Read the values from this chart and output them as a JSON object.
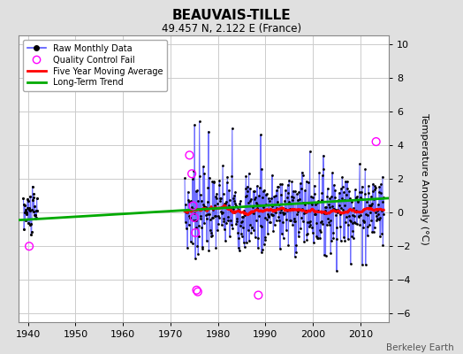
{
  "title": "BEAUVAIS-TILLE",
  "subtitle": "49.457 N, 2.122 E (France)",
  "ylabel": "Temperature Anomaly (°C)",
  "credit": "Berkeley Earth",
  "xlim": [
    1938,
    2016
  ],
  "ylim": [
    -6.5,
    10.5
  ],
  "yticks": [
    -6,
    -4,
    -2,
    0,
    2,
    4,
    6,
    8,
    10
  ],
  "xticks": [
    1940,
    1950,
    1960,
    1970,
    1980,
    1990,
    2000,
    2010
  ],
  "bg_color": "#e0e0e0",
  "plot_bg_color": "#ffffff",
  "grid_color": "#cccccc",
  "raw_color": "#5555ff",
  "dot_color": "#000000",
  "ma_color": "#ff0000",
  "trend_color": "#00aa00",
  "qc_color": "#ff00ff",
  "trend_x": [
    1938,
    2016
  ],
  "trend_y": [
    -0.45,
    0.85
  ],
  "early_seed": 10,
  "main_seed": 7
}
